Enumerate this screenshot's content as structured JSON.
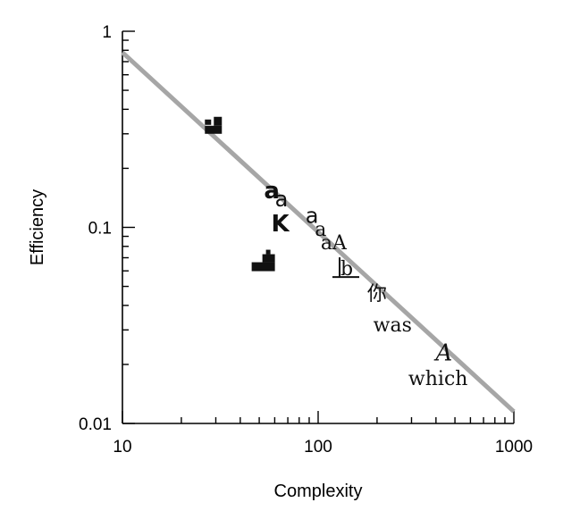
{
  "chart_data": {
    "type": "scatter",
    "title": "",
    "xlabel": "Complexity",
    "ylabel": "Efficiency",
    "xscale": "log",
    "yscale": "log",
    "xlim": [
      10,
      1000
    ],
    "ylim": [
      0.01,
      1
    ],
    "grid": false,
    "x_tick_labels": [
      "10",
      "100",
      "1000"
    ],
    "y_tick_labels": [
      "0.01",
      "0.1",
      "1"
    ],
    "fit_line": {
      "x": [
        10,
        1000
      ],
      "y": [
        0.78,
        0.0115
      ],
      "color": "#a6a6a6"
    },
    "points": [
      {
        "label": "",
        "kind": "block-upper",
        "x": 29,
        "y": 0.3
      },
      {
        "label": "a",
        "kind": "sans-bold",
        "x": 58,
        "y": 0.155
      },
      {
        "label": "a",
        "kind": "sans",
        "x": 65,
        "y": 0.14
      },
      {
        "label": "K",
        "kind": "sans-bold",
        "x": 64,
        "y": 0.105
      },
      {
        "label": "a",
        "kind": "sans",
        "x": 93,
        "y": 0.115
      },
      {
        "label": "a",
        "kind": "serif",
        "x": 103,
        "y": 0.098
      },
      {
        "label": "aA",
        "kind": "serif",
        "x": 120,
        "y": 0.084
      },
      {
        "label": "",
        "kind": "block-lower",
        "x": 53,
        "y": 0.063
      },
      {
        "label": "b",
        "kind": "serif-underlined",
        "x": 140,
        "y": 0.062
      },
      {
        "label": "你",
        "kind": "serif",
        "x": 200,
        "y": 0.046
      },
      {
        "label": "was",
        "kind": "serif",
        "x": 240,
        "y": 0.032
      },
      {
        "label": "A",
        "kind": "script",
        "x": 440,
        "y": 0.023
      },
      {
        "label": "which",
        "kind": "serif",
        "x": 410,
        "y": 0.017
      }
    ]
  }
}
